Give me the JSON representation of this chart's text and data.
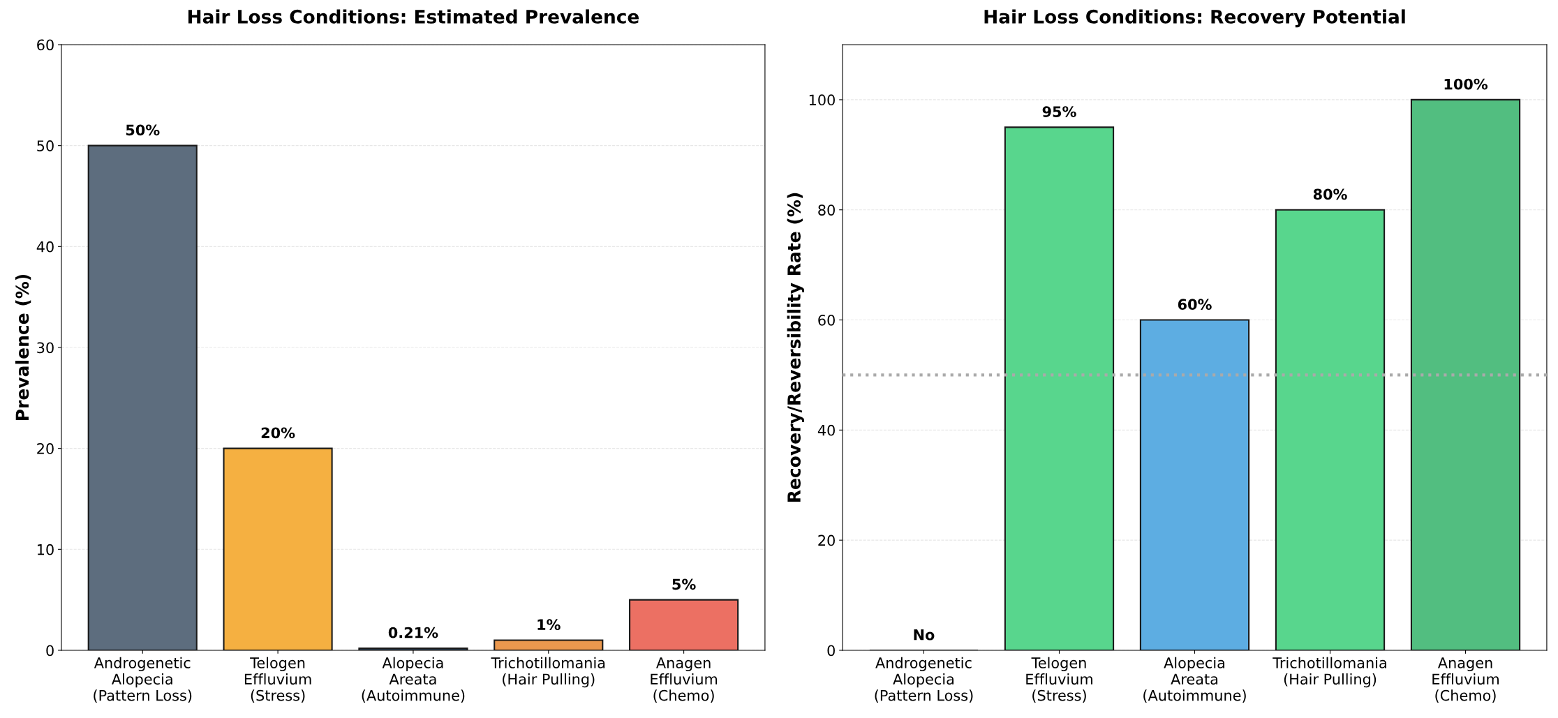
{
  "chart_data": [
    {
      "type": "bar",
      "title": "Hair Loss Conditions: Estimated Prevalence",
      "ylabel": "Prevalence (%)",
      "categories": [
        "Androgenetic\nAlopecia\n(Pattern Loss)",
        "Telogen\nEffluvium\n(Stress)",
        "Alopecia\nAreata\n(Autoimmune)",
        "Trichotillomania\n(Hair Pulling)",
        "Anagen\nEffluvium\n(Chemo)"
      ],
      "values": [
        50,
        20,
        0.21,
        1,
        5
      ],
      "colors": [
        "#5d6d7e",
        "#f5b041",
        "#2c3e50",
        "#eb984e",
        "#ec7063"
      ],
      "value_labels": [
        "50%",
        "20%",
        "0.21%",
        "1%",
        "5%"
      ],
      "ylim": [
        0,
        60
      ],
      "yticks": [
        0,
        10,
        20,
        30,
        40,
        50,
        60
      ],
      "grid": "y"
    },
    {
      "type": "bar",
      "title": "Hair Loss Conditions: Recovery Potential",
      "ylabel": "Recovery/Reversibility Rate (%)",
      "categories": [
        "Androgenetic\nAlopecia\n(Pattern Loss)",
        "Telogen\nEffluvium\n(Stress)",
        "Alopecia\nAreata\n(Autoimmune)",
        "Trichotillomania\n(Hair Pulling)",
        "Anagen\nEffluvium\n(Chemo)"
      ],
      "values": [
        0,
        95,
        60,
        80,
        100
      ],
      "colors": [
        "#1a1a1a",
        "#58d68d",
        "#5dade2",
        "#58d68d",
        "#52be80"
      ],
      "value_labels": [
        "No",
        "95%",
        "60%",
        "80%",
        "100%"
      ],
      "ylim": [
        0,
        110
      ],
      "yticks": [
        0,
        20,
        40,
        60,
        80,
        100
      ],
      "grid": "y",
      "ref_lines": [
        {
          "axis": "y",
          "value": 50,
          "color": "#aaaaaa",
          "line_style": "dotted"
        }
      ]
    }
  ]
}
